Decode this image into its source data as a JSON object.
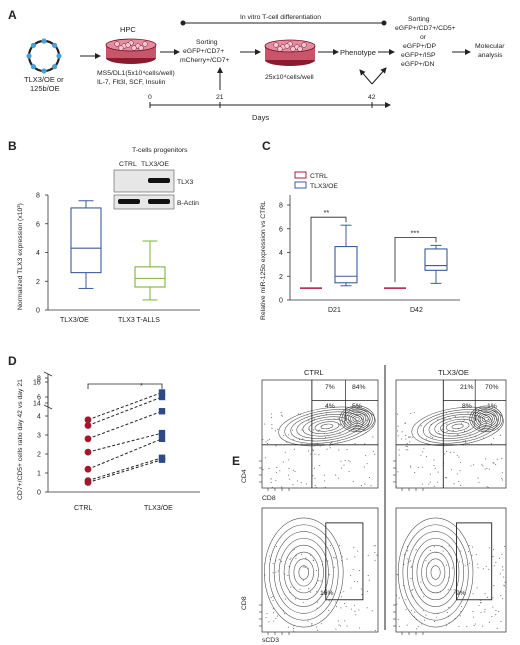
{
  "panels": {
    "a": {
      "letter": "A",
      "vector_label": [
        "TLX3/OE or",
        "125b/OE"
      ],
      "hpc_label": "HPC",
      "culture_conditions": [
        "MS5/DL1(5x10⁴cells/well)",
        "IL-7, Flt3l, SCF, Insulin"
      ],
      "bracket_label": "In vitro T-cell differentiation",
      "sorting1": [
        "Sorting",
        "eGFP+/CD7+",
        "mCherry+/CD7+"
      ],
      "replating": "25x10⁴cells/well",
      "phenotype": "Phenotype",
      "sorting2": [
        "Sorting",
        "eGFP+/CD7+/CD5+",
        "or",
        "eGFP+/DP",
        "eGFP+/ISP",
        "eGFP+/DN"
      ],
      "analysis": [
        "Molecular",
        "analysis"
      ],
      "days": [
        "0",
        "21",
        "42"
      ],
      "days_label": "Days"
    },
    "b": {
      "letter": "B",
      "blot_title": "T-cells progenitors",
      "lanes": [
        "CTRL",
        "TLX3/OE"
      ],
      "bands": [
        "TLX3",
        "B-Actin"
      ],
      "ylabel": "Normalized TLX3 expression (x10³)",
      "yticks": [
        "0",
        "2",
        "4",
        "6",
        "8"
      ],
      "categories": [
        "TLX3/OE",
        "TLX3 T-ALLS"
      ]
    },
    "c": {
      "letter": "C",
      "legend": [
        "CTRL",
        "TLX3/OE"
      ],
      "ylabel": "Relative miR-125b expression vs CTRL",
      "yticks": [
        "0",
        "2",
        "4",
        "6",
        "8"
      ],
      "categories": [
        "D21",
        "D42"
      ],
      "sig": [
        "**",
        "***"
      ]
    },
    "d": {
      "letter": "D",
      "ylabel": "CD7+/CD5+ cells ratio day 42 vs day 21",
      "yticks": [
        "0",
        "1",
        "2",
        "3",
        "4",
        "6",
        "8",
        "14",
        "16"
      ],
      "categories": [
        "CTRL",
        "TLX3/OE"
      ],
      "sig": "*"
    },
    "e": {
      "letter": "E",
      "groups": [
        "CTRL",
        "TLX3/OE"
      ],
      "ctrl_quadrants": [
        "7%",
        "84%",
        "4%",
        "5%"
      ],
      "tlx_quadrants": [
        "21%",
        "70%",
        "8%",
        "1%"
      ],
      "top_axes": [
        "CD4",
        "CD8"
      ],
      "bottom_axes": [
        "CD8",
        "sCD3"
      ],
      "ctrl_gate": "16%",
      "tlx_gate": "9%"
    }
  },
  "chart_data": [
    {
      "type": "box",
      "ylabel": "Normalized TLX3 expression (x10³)",
      "ylim": [
        0,
        8
      ],
      "categories": [
        "TLX3/OE",
        "TLX3 T-ALLS"
      ],
      "boxes": [
        {
          "min": 1.5,
          "q1": 2.6,
          "median": 4.3,
          "q3": 7.1,
          "max": 7.6,
          "color": "#3c5d9a"
        },
        {
          "min": 0.7,
          "q1": 1.6,
          "median": 2.2,
          "q3": 3.0,
          "max": 4.8,
          "color": "#7db33a"
        }
      ]
    },
    {
      "type": "box",
      "ylabel": "Relative miR-125b expression vs CTRL",
      "ylim": [
        0,
        8
      ],
      "categories": [
        "D21",
        "D42"
      ],
      "series": [
        {
          "name": "CTRL",
          "color": "#b0183a",
          "values": [
            {
              "median": 1.0
            },
            {
              "median": 1.0
            }
          ]
        },
        {
          "name": "TLX3/OE",
          "color": "#3c5d9a",
          "values": [
            {
              "min": 1.2,
              "q1": 1.45,
              "median": 2.0,
              "q3": 4.5,
              "max": 6.3
            },
            {
              "min": 1.4,
              "q1": 2.5,
              "median": 2.9,
              "q3": 4.3,
              "max": 4.6
            }
          ]
        }
      ]
    },
    {
      "type": "paired-scatter",
      "ylabel": "CD7+/CD5+ cells ratio day 42 vs day 21",
      "categories": [
        "CTRL",
        "TLX3/OE"
      ],
      "pairs": [
        [
          3.8,
          15.0
        ],
        [
          3.5,
          6.0
        ],
        [
          2.8,
          4.5
        ],
        [
          2.1,
          3.1
        ],
        [
          1.2,
          2.8
        ],
        [
          0.6,
          1.8
        ],
        [
          0.5,
          1.7
        ]
      ],
      "colors": [
        "#a0182e",
        "#2e4a86"
      ]
    }
  ]
}
